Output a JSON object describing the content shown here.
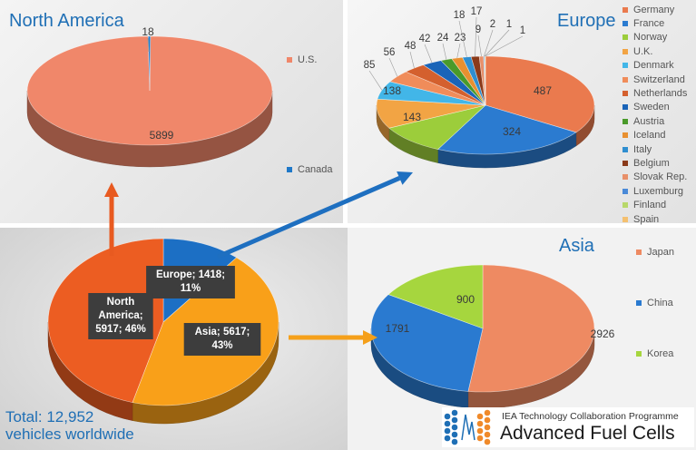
{
  "colors": {
    "title": "#1f6fb5",
    "us": "#f0876a",
    "canada": "#1f78c8",
    "germany": "#ea7a4e",
    "france": "#2b7bd0",
    "norway": "#9ccd3b",
    "uk": "#f2a444",
    "denmark": "#42b6e8",
    "switzerland": "#f08c5a",
    "netherlands": "#d4602e",
    "sweden": "#1a64b8",
    "austria": "#4a9a2a",
    "iceland": "#e89030",
    "italy": "#2f8ed0",
    "belgium": "#8a3a1a",
    "slovak": "#e8906a",
    "luxemburg": "#4a8ad8",
    "finland": "#b8d86a",
    "spain": "#f4c070",
    "japan": "#ee8a62",
    "china": "#2a7ad0",
    "korea": "#a6d63e",
    "world_na": "#ec5d22",
    "world_asia": "#f9a019",
    "world_eu": "#1c6fc4",
    "arrow_na": "#e85a20",
    "arrow_eu": "#1e6fc0",
    "arrow_asia": "#f5a01a"
  },
  "chart_data": [
    {
      "type": "pie",
      "title": "North America",
      "labels": [
        "U.S.",
        "Canada"
      ],
      "values": [
        5899,
        18
      ],
      "legend": "right"
    },
    {
      "type": "pie",
      "title": "Europe",
      "labels": [
        "Germany",
        "France",
        "Norway",
        "U.K.",
        "Denmark",
        "Switzerland",
        "Netherlands",
        "Sweden",
        "Austria",
        "Iceland",
        "Italy",
        "Belgium",
        "Slovak Rep.",
        "Luxemburg",
        "Finland",
        "Spain"
      ],
      "values": [
        487,
        324,
        143,
        138,
        85,
        56,
        48,
        42,
        24,
        23,
        18,
        17,
        9,
        2,
        1,
        1
      ],
      "legend": "right"
    },
    {
      "type": "pie",
      "title": "Asia",
      "labels": [
        "Japan",
        "China",
        "Korea"
      ],
      "values": [
        2926,
        1791,
        900
      ],
      "legend": "right"
    },
    {
      "type": "pie",
      "title": "",
      "labels": [
        "North America",
        "Asia",
        "Europe"
      ],
      "values": [
        5917,
        5617,
        1418
      ],
      "percents": [
        46,
        43,
        11
      ],
      "data_labels": [
        "North America; 5917; 46%",
        "Asia; 5617; 43%",
        "Europe; 1418; 11%"
      ]
    }
  ],
  "total_text": [
    "Total: 12,952",
    "vehicles worldwide"
  ],
  "logo": {
    "line1": "IEA Technology Collaboration Programme",
    "line2": "Advanced Fuel Cells"
  }
}
